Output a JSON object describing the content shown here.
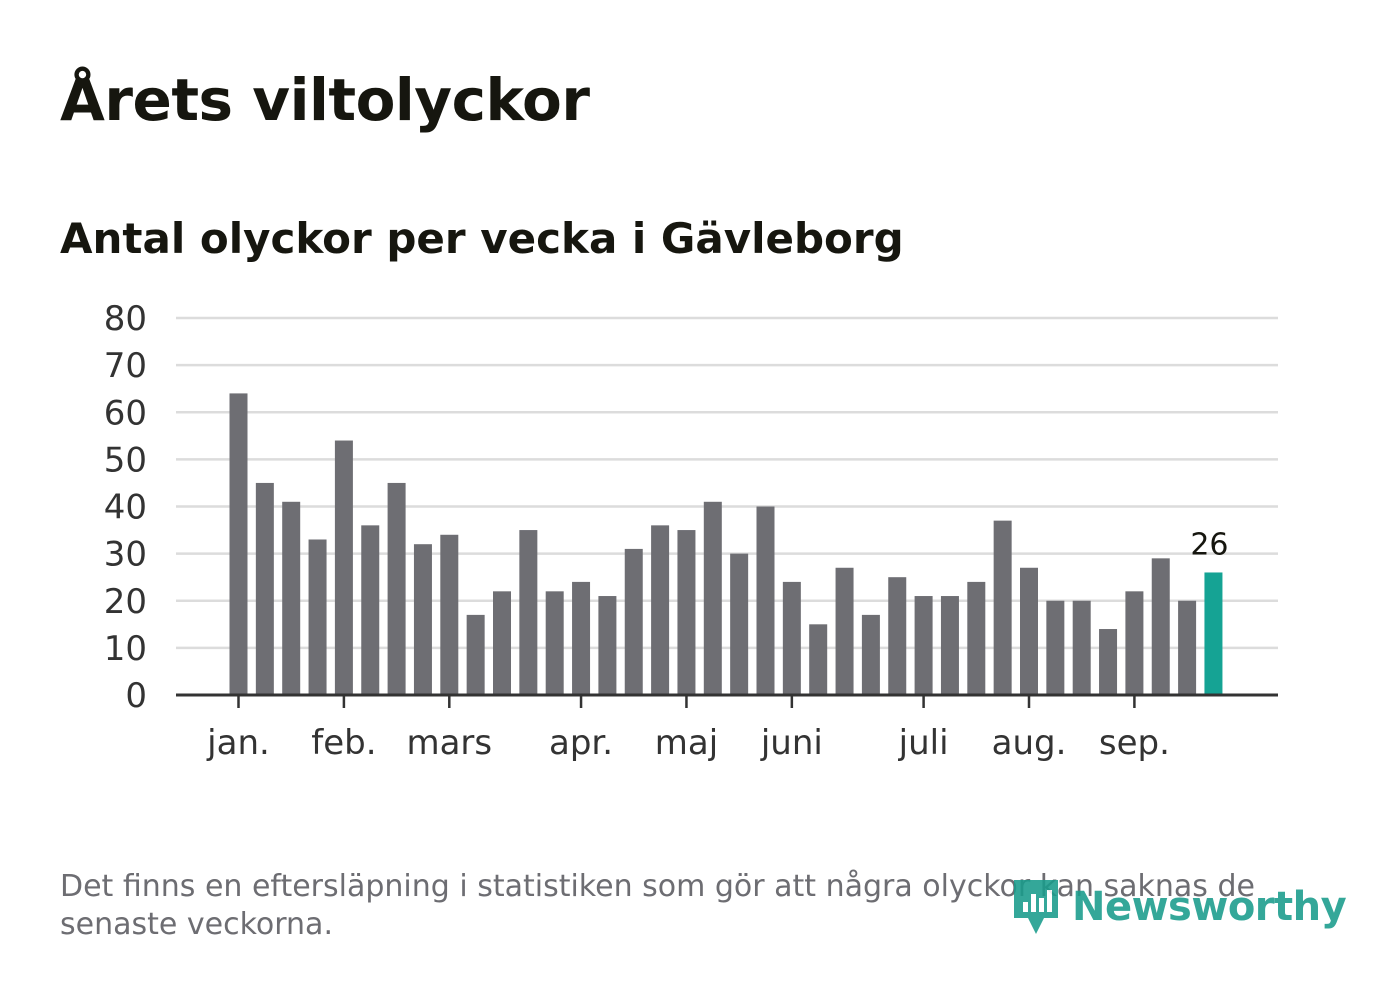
{
  "title": "Årets viltolyckor",
  "subtitle": "Antal olyckor per vecka i Gävleborg",
  "footnote": "Det finns en eftersläpning i statistiken som gör att några olyckor kan saknas de senaste veckorna.",
  "logo": {
    "text": "Newsworthy",
    "icon": "newsworthy-logo-icon"
  },
  "colors": {
    "bar": "#6e6e73",
    "highlight": "#15a394",
    "grid": "#dcdcdc",
    "axis": "#333333",
    "logo": "#199c8c"
  },
  "chart_data": {
    "type": "bar",
    "ylim": [
      0,
      80
    ],
    "yticks": [
      0,
      10,
      20,
      30,
      40,
      50,
      60,
      70,
      80
    ],
    "values": [
      64,
      45,
      41,
      33,
      54,
      36,
      45,
      32,
      34,
      17,
      22,
      35,
      22,
      24,
      21,
      31,
      36,
      35,
      41,
      30,
      40,
      24,
      15,
      27,
      17,
      25,
      21,
      21,
      24,
      37,
      27,
      20,
      20,
      14,
      22,
      29,
      20,
      26
    ],
    "highlight_index": 37,
    "highlight_label": "26",
    "month_labels": [
      {
        "label": "jan.",
        "bar": 0
      },
      {
        "label": "feb.",
        "bar": 4
      },
      {
        "label": "mars",
        "bar": 8
      },
      {
        "label": "apr.",
        "bar": 13
      },
      {
        "label": "maj",
        "bar": 17
      },
      {
        "label": "juni",
        "bar": 21
      },
      {
        "label": "juli",
        "bar": 26
      },
      {
        "label": "aug.",
        "bar": 30
      },
      {
        "label": "sep.",
        "bar": 34
      }
    ],
    "grid": true,
    "legend": "none"
  }
}
